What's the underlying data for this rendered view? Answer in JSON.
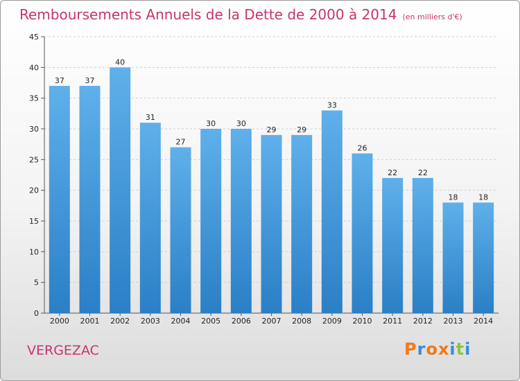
{
  "title": "Remboursements Annuels de la Dette de 2000 à 2014",
  "subtitle": "(en milliers d'€)",
  "commune": "VERGEZAC",
  "logo": {
    "text": "Proxiti",
    "colors": [
      "#f07a1a",
      "#3a8dd8",
      "#f07a1a",
      "#f07a1a",
      "#3a8dd8",
      "#8cc63f",
      "#3a8dd8"
    ]
  },
  "colors": {
    "bar": "#4aa0e0",
    "bar_dark": "#2f86cc",
    "title": "#c8336f"
  },
  "chart_data": {
    "type": "bar",
    "categories": [
      "2000",
      "2001",
      "2002",
      "2003",
      "2004",
      "2005",
      "2006",
      "2007",
      "2008",
      "2009",
      "2010",
      "2011",
      "2012",
      "2013",
      "2014"
    ],
    "values": [
      37,
      37,
      40,
      31,
      27,
      30,
      30,
      29,
      29,
      33,
      26,
      22,
      22,
      18,
      18
    ],
    "ylim": [
      0,
      45
    ],
    "yticks": [
      0,
      5,
      10,
      15,
      20,
      25,
      30,
      35,
      40,
      45
    ],
    "title": "Remboursements Annuels de la Dette de 2000 à 2014",
    "xlabel": "",
    "ylabel": "",
    "grid": true
  }
}
